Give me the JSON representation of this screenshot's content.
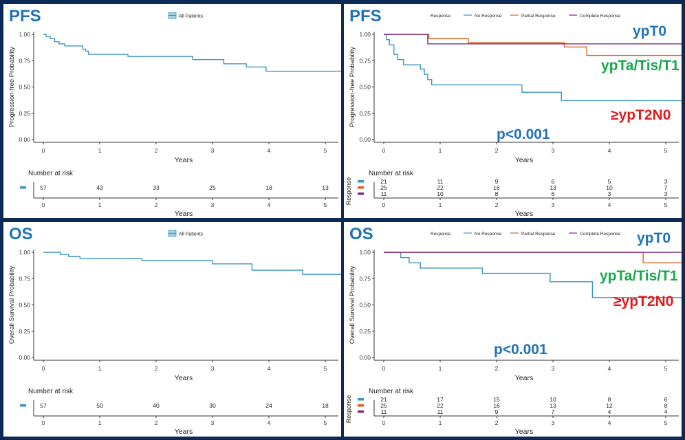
{
  "colors": {
    "frame": "#0c2a55",
    "all": "#3a94c7",
    "no_response": "#3a94c7",
    "partial_response": "#e0601e",
    "complete_response": "#7a2a86",
    "tag_blue": "#1f72b8",
    "tag_green": "#18a84a",
    "tag_red": "#e01b1b"
  },
  "panels": [
    {
      "tag": "PFS",
      "x_label": "Years",
      "y_label": "Progression-free Probability",
      "legend_title": "",
      "legend_items": [
        {
          "label": "All Patients",
          "color": "#3a94c7"
        }
      ],
      "risk_title": "Number at risk",
      "risk_axis_label": "Years",
      "risk_y_label": "",
      "annotations": {}
    },
    {
      "tag": "PFS",
      "x_label": "Years",
      "y_label": "Progression-free Probability",
      "legend_title": "Response",
      "legend_items": [
        {
          "label": "No Response",
          "color": "#3a94c7"
        },
        {
          "label": "Partial Response",
          "color": "#e0601e"
        },
        {
          "label": "Complete Response",
          "color": "#7a2a86"
        }
      ],
      "risk_title": "Number at risk",
      "risk_axis_label": "Years",
      "risk_y_label": "Response",
      "annotations": {
        "ypt0": "ypT0",
        "ypta": "ypTa/Tis/T1",
        "ypt2": "≥ypT2N0",
        "p": "p<0.001"
      }
    },
    {
      "tag": "OS",
      "x_label": "Years",
      "y_label": "Overall Survival Probability",
      "legend_title": "",
      "legend_items": [
        {
          "label": "All Patients",
          "color": "#3a94c7"
        }
      ],
      "risk_title": "Number at risk",
      "risk_axis_label": "Years",
      "risk_y_label": "",
      "annotations": {}
    },
    {
      "tag": "OS",
      "x_label": "Years",
      "y_label": "Overall Survival Probability",
      "legend_title": "Response",
      "legend_items": [
        {
          "label": "No Response",
          "color": "#3a94c7"
        },
        {
          "label": "Partial Response",
          "color": "#e0601e"
        },
        {
          "label": "Complete Response",
          "color": "#7a2a86"
        }
      ],
      "risk_title": "Number at risk",
      "risk_axis_label": "Years",
      "risk_y_label": "Response",
      "annotations": {
        "ypt0": "ypT0",
        "ypta": "ypTa/Tis/T1",
        "ypt2": "≥ypT2N0",
        "p": "p<0.001"
      }
    }
  ],
  "chart_data": [
    {
      "type": "line",
      "title": "PFS",
      "xlabel": "Years",
      "ylabel": "Progression-free Probability",
      "xlim": [
        0,
        5.3
      ],
      "ylim": [
        0,
        1
      ],
      "xticks": [
        0,
        1,
        2,
        3,
        4,
        5
      ],
      "yticks": [
        "0.00",
        "0.25",
        "0.50",
        "0.75",
        "1.00"
      ],
      "legend": "top",
      "series": [
        {
          "name": "All Patients",
          "color": "#3a94c7",
          "x": [
            0,
            0.05,
            0.12,
            0.2,
            0.28,
            0.38,
            0.7,
            0.75,
            0.8,
            1.5,
            2.65,
            3.2,
            3.6,
            3.95,
            5.3
          ],
          "y": [
            1.0,
            0.98,
            0.96,
            0.93,
            0.91,
            0.89,
            0.86,
            0.84,
            0.81,
            0.79,
            0.76,
            0.72,
            0.69,
            0.65,
            0.6
          ]
        }
      ],
      "risk_table": {
        "title": "Number at risk",
        "times": [
          0,
          1,
          2,
          3,
          4,
          5
        ],
        "rows": [
          {
            "name": "All Patients",
            "color": "#3a94c7",
            "values": [
              57,
              43,
              33,
              25,
              18,
              13
            ]
          }
        ]
      }
    },
    {
      "type": "line",
      "title": "PFS",
      "xlabel": "Years",
      "ylabel": "Progression-free Probability",
      "xlim": [
        0,
        5.3
      ],
      "ylim": [
        0,
        1
      ],
      "xticks": [
        0,
        1,
        2,
        3,
        4,
        5
      ],
      "yticks": [
        "0.00",
        "0.25",
        "0.50",
        "0.75",
        "1.00"
      ],
      "legend": "top",
      "annotations": [
        "ypT0",
        "ypTa/Tis/T1",
        "≥ypT2N0",
        "p<0.001"
      ],
      "series": [
        {
          "name": "No Response",
          "color": "#3a94c7",
          "x": [
            0,
            0.05,
            0.1,
            0.18,
            0.25,
            0.35,
            0.65,
            0.72,
            0.78,
            0.85,
            2.45,
            3.15,
            5.3
          ],
          "y": [
            1.0,
            0.95,
            0.9,
            0.81,
            0.76,
            0.71,
            0.67,
            0.62,
            0.57,
            0.52,
            0.45,
            0.37,
            0.34
          ]
        },
        {
          "name": "Partial Response",
          "color": "#e0601e",
          "x": [
            0,
            0.8,
            1.5,
            3.2,
            3.6,
            5.3
          ],
          "y": [
            1.0,
            0.96,
            0.92,
            0.88,
            0.8,
            0.8
          ]
        },
        {
          "name": "Complete Response",
          "color": "#7a2a86",
          "x": [
            0,
            0.78,
            5.3
          ],
          "y": [
            1.0,
            0.91,
            0.91
          ]
        }
      ],
      "risk_table": {
        "title": "Number at risk",
        "times": [
          0,
          1,
          2,
          3,
          4,
          5
        ],
        "rows": [
          {
            "name": "No Response",
            "color": "#3a94c7",
            "values": [
              21,
              11,
              9,
              6,
              5,
              3
            ]
          },
          {
            "name": "Partial Response",
            "color": "#e0601e",
            "values": [
              25,
              22,
              16,
              13,
              10,
              7
            ]
          },
          {
            "name": "Complete Response",
            "color": "#7a2a86",
            "values": [
              11,
              10,
              8,
              6,
              3,
              3
            ]
          }
        ]
      }
    },
    {
      "type": "line",
      "title": "OS",
      "xlabel": "Years",
      "ylabel": "Overall Survival Probability",
      "xlim": [
        0,
        5.3
      ],
      "ylim": [
        0,
        1
      ],
      "xticks": [
        0,
        1,
        2,
        3,
        4,
        5
      ],
      "yticks": [
        "0.00",
        "0.25",
        "0.50",
        "0.75",
        "1.00"
      ],
      "legend": "top",
      "series": [
        {
          "name": "All Patients",
          "color": "#3a94c7",
          "x": [
            0,
            0.3,
            0.45,
            0.65,
            1.75,
            3.0,
            3.7,
            4.6,
            5.3
          ],
          "y": [
            1.0,
            0.98,
            0.96,
            0.94,
            0.92,
            0.89,
            0.83,
            0.79,
            0.79
          ]
        }
      ],
      "risk_table": {
        "title": "Number at risk",
        "times": [
          0,
          1,
          2,
          3,
          4,
          5
        ],
        "rows": [
          {
            "name": "All Patients",
            "color": "#3a94c7",
            "values": [
              57,
              50,
              40,
              30,
              24,
              18
            ]
          }
        ]
      }
    },
    {
      "type": "line",
      "title": "OS",
      "xlabel": "Years",
      "ylabel": "Overall Survival Probability",
      "xlim": [
        0,
        5.3
      ],
      "ylim": [
        0,
        1
      ],
      "xticks": [
        0,
        1,
        2,
        3,
        4,
        5
      ],
      "yticks": [
        "0.00",
        "0.25",
        "0.50",
        "0.75",
        "1.00"
      ],
      "legend": "top",
      "annotations": [
        "ypT0",
        "ypTa/Tis/T1",
        "≥ypT2N0",
        "p<0.001"
      ],
      "series": [
        {
          "name": "No Response",
          "color": "#3a94c7",
          "x": [
            0,
            0.3,
            0.45,
            0.65,
            1.75,
            2.95,
            3.7,
            5.3
          ],
          "y": [
            1.0,
            0.95,
            0.9,
            0.85,
            0.8,
            0.72,
            0.57,
            0.57
          ]
        },
        {
          "name": "Partial Response",
          "color": "#e0601e",
          "x": [
            0,
            4.6,
            5.3
          ],
          "y": [
            1.0,
            0.9,
            0.9
          ]
        },
        {
          "name": "Complete Response",
          "color": "#7a2a86",
          "x": [
            0,
            5.3
          ],
          "y": [
            1.0,
            1.0
          ]
        }
      ],
      "risk_table": {
        "title": "Number at risk",
        "times": [
          0,
          1,
          2,
          3,
          4,
          5
        ],
        "rows": [
          {
            "name": "No Response",
            "color": "#3a94c7",
            "values": [
              21,
              17,
              15,
              10,
              8,
              6
            ]
          },
          {
            "name": "Partial Response",
            "color": "#e0601e",
            "values": [
              25,
              22,
              16,
              13,
              12,
              8
            ]
          },
          {
            "name": "Complete Response",
            "color": "#7a2a86",
            "values": [
              11,
              11,
              9,
              7,
              4,
              4
            ]
          }
        ]
      }
    }
  ]
}
